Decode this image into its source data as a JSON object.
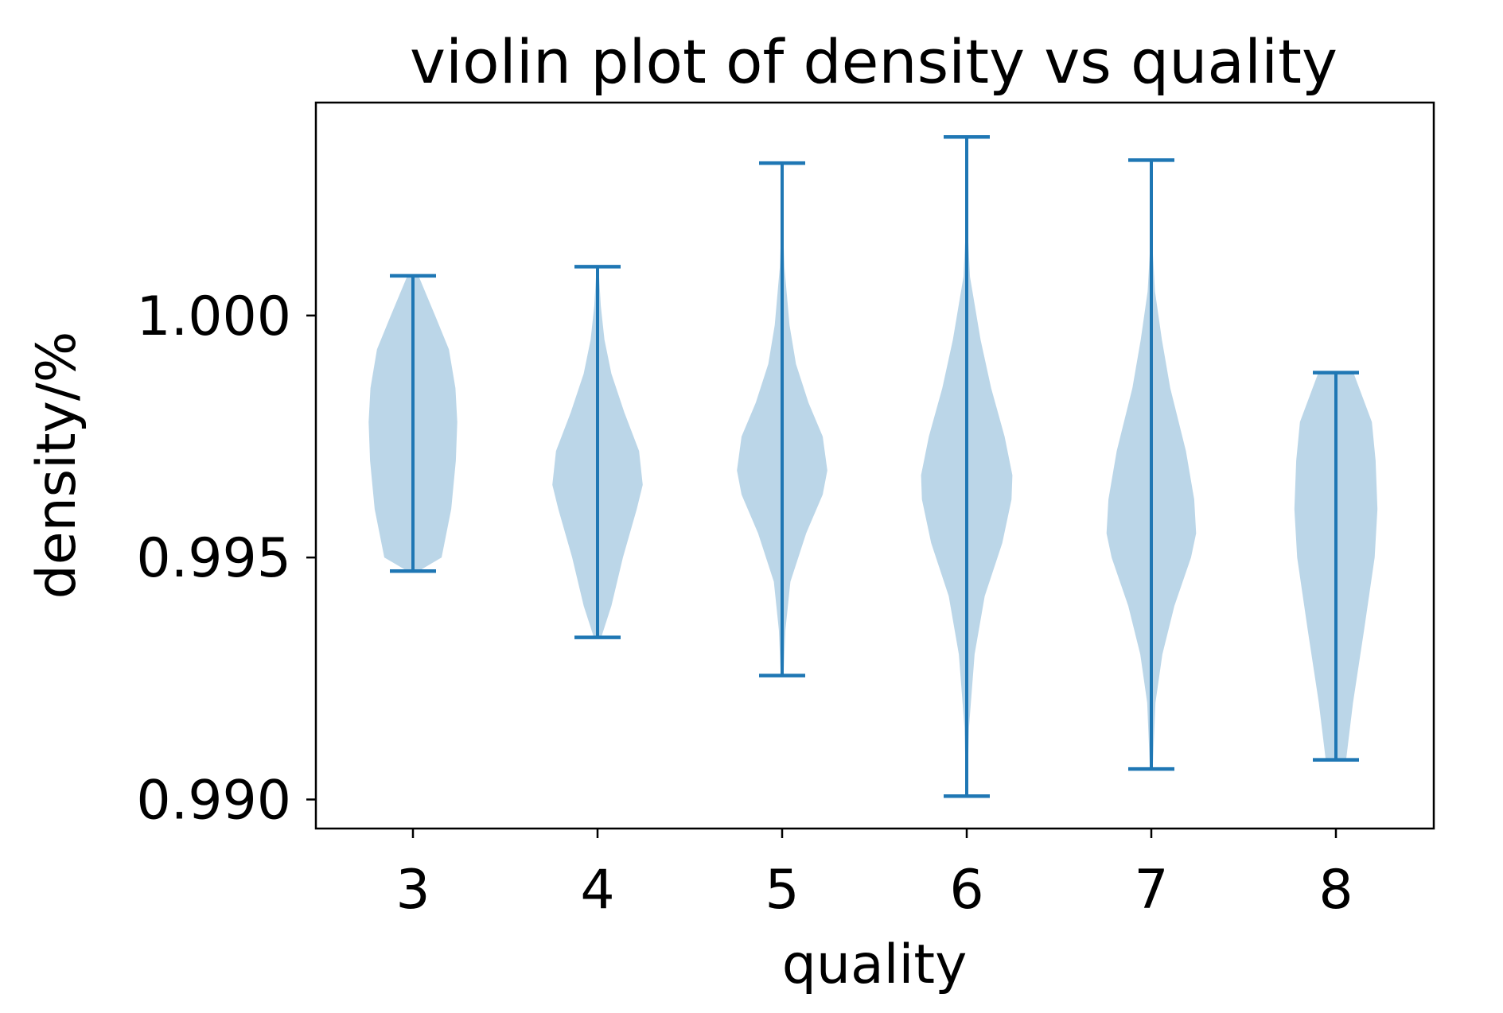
{
  "chart_data": {
    "type": "violin",
    "title": "violin plot of density vs quality",
    "xlabel": "quality",
    "ylabel": "density/%",
    "ylim": [
      0.9894,
      1.0044
    ],
    "y_ticks": [
      {
        "value": 0.99,
        "label": "0.990"
      },
      {
        "value": 0.995,
        "label": "0.995"
      },
      {
        "value": 1.0,
        "label": "1.000"
      }
    ],
    "categories": [
      "3",
      "4",
      "5",
      "6",
      "7",
      "8"
    ],
    "grid": false,
    "legend": "none",
    "colors": {
      "body_fill": "#1f77b4",
      "body_fill_opacity": 0.3,
      "line": "#1f77b4",
      "axis": "#000000"
    },
    "violins": [
      {
        "category": "3",
        "min": 0.99472,
        "max": 1.00082,
        "profile": [
          [
            0.99472,
            0.12
          ],
          [
            0.995,
            0.62
          ],
          [
            0.996,
            0.83
          ],
          [
            0.997,
            0.93
          ],
          [
            0.9978,
            0.96
          ],
          [
            0.9985,
            0.92
          ],
          [
            0.9993,
            0.78
          ],
          [
            1.0,
            0.48
          ],
          [
            1.00082,
            0.12
          ]
        ]
      },
      {
        "category": "4",
        "min": 0.99335,
        "max": 1.00101,
        "profile": [
          [
            0.99335,
            0.08
          ],
          [
            0.994,
            0.3
          ],
          [
            0.995,
            0.55
          ],
          [
            0.996,
            0.85
          ],
          [
            0.9965,
            0.98
          ],
          [
            0.9972,
            0.9
          ],
          [
            0.998,
            0.58
          ],
          [
            0.9988,
            0.3
          ],
          [
            0.9995,
            0.15
          ],
          [
            1.0002,
            0.07
          ],
          [
            1.00101,
            0.02
          ]
        ]
      },
      {
        "category": "5",
        "min": 0.99256,
        "max": 1.00315,
        "profile": [
          [
            0.99256,
            0.03
          ],
          [
            0.9935,
            0.07
          ],
          [
            0.9945,
            0.18
          ],
          [
            0.9955,
            0.52
          ],
          [
            0.9963,
            0.88
          ],
          [
            0.9968,
            0.98
          ],
          [
            0.9975,
            0.88
          ],
          [
            0.9982,
            0.57
          ],
          [
            0.999,
            0.3
          ],
          [
            0.9998,
            0.16
          ],
          [
            1.001,
            0.05
          ],
          [
            1.002,
            0.01
          ],
          [
            1.00315,
            0.01
          ]
        ]
      },
      {
        "category": "6",
        "min": 0.99007,
        "max": 1.00369,
        "profile": [
          [
            0.99007,
            0.01
          ],
          [
            0.9915,
            0.05
          ],
          [
            0.993,
            0.17
          ],
          [
            0.9942,
            0.39
          ],
          [
            0.9953,
            0.77
          ],
          [
            0.9962,
            0.97
          ],
          [
            0.9967,
            0.99
          ],
          [
            0.9975,
            0.82
          ],
          [
            0.9985,
            0.53
          ],
          [
            0.9995,
            0.3
          ],
          [
            1.0008,
            0.07
          ],
          [
            1.002,
            0.01
          ],
          [
            1.00369,
            0.01
          ]
        ]
      },
      {
        "category": "7",
        "min": 0.99063,
        "max": 1.00321,
        "profile": [
          [
            0.99063,
            0.03
          ],
          [
            0.992,
            0.09
          ],
          [
            0.993,
            0.24
          ],
          [
            0.994,
            0.5
          ],
          [
            0.995,
            0.86
          ],
          [
            0.9955,
            0.97
          ],
          [
            0.9962,
            0.93
          ],
          [
            0.9972,
            0.75
          ],
          [
            0.9985,
            0.41
          ],
          [
            0.9995,
            0.23
          ],
          [
            1.0005,
            0.08
          ],
          [
            1.0015,
            0.02
          ],
          [
            1.00321,
            0.01
          ]
        ]
      },
      {
        "category": "8",
        "min": 0.99082,
        "max": 0.99882,
        "profile": [
          [
            0.99082,
            0.22
          ],
          [
            0.992,
            0.37
          ],
          [
            0.9935,
            0.61
          ],
          [
            0.995,
            0.84
          ],
          [
            0.996,
            0.9
          ],
          [
            0.997,
            0.86
          ],
          [
            0.9978,
            0.78
          ],
          [
            0.99882,
            0.38
          ]
        ]
      }
    ]
  }
}
